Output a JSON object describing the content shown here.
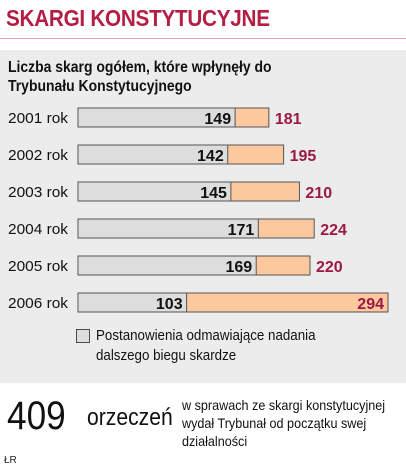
{
  "header": {
    "title": "SKARGI KONSTYTUCYJNE"
  },
  "chart_data": {
    "type": "bar",
    "stacked_overlap": true,
    "subtitle": "Liczba skarg ogółem, które wpłynęły do Trybunału Konstytucyjnego",
    "categories": [
      "2001 rok",
      "2002 rok",
      "2003 rok",
      "2004 rok",
      "2005 rok",
      "2006 rok"
    ],
    "series": [
      {
        "name": "Postanowienia odmawiające nadania dalszego biegu skardze",
        "values": [
          149,
          142,
          145,
          171,
          169,
          103
        ],
        "color": "#dddddd"
      },
      {
        "values": [
          181,
          195,
          210,
          224,
          220,
          294
        ],
        "color": "#fcc89e"
      }
    ],
    "label_colors": {
      "refused": "#111111",
      "total": "#9b1944"
    },
    "xlim": [
      0,
      294
    ],
    "grid": false,
    "legend_position": "bottom"
  },
  "legend": {
    "label": "Postanowienia odmawiające nadania dalszego biegu skardze"
  },
  "footer": {
    "big_number": "409",
    "big_unit": "orzeczeń",
    "description": "w sprawach ze skargi konstytucyjnej wydał Trybunał od początku swej działalności",
    "credit": "ŁR"
  }
}
